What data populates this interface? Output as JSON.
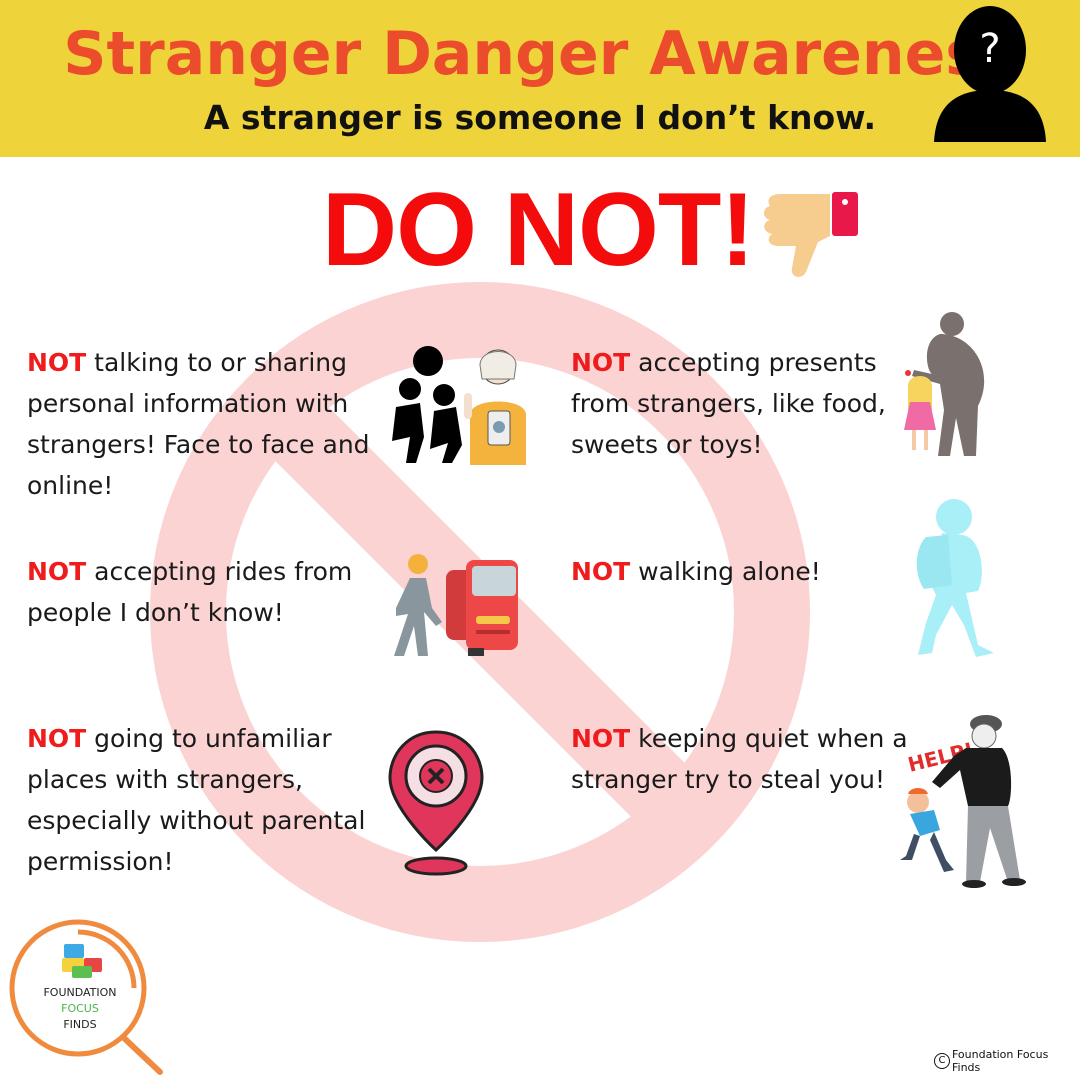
{
  "header": {
    "title": "Stranger Danger Awareness",
    "subtitle": "A stranger is someone I don’t know.",
    "question_mark": "?",
    "icon": "person-question-icon"
  },
  "headline": {
    "text": "DO NOT!",
    "icon": "thumbs-down-icon"
  },
  "items": [
    {
      "keyword": "NOT",
      "text": " talking to or sharing personal information with strangers! Face to face and online!",
      "icon": "talking-people-icon"
    },
    {
      "keyword": "NOT",
      "text": " accepting presents from strangers, like food, sweets or toys!",
      "icon": "stranger-offering-child-icon"
    },
    {
      "keyword": "NOT",
      "text": " accepting rides from people I don’t know!",
      "icon": "person-and-car-icon"
    },
    {
      "keyword": "NOT",
      "text": " walking alone!",
      "icon": "child-walking-alone-icon"
    },
    {
      "keyword": "NOT",
      "text": " going to unfamiliar places with strangers, especially without parental permission!",
      "icon": "location-pin-x-icon"
    },
    {
      "keyword": "NOT",
      "text": " keeping quiet when a stranger try to steal you!",
      "icon": "stranger-grabbing-child-icon"
    }
  ],
  "help_label": "HELP!",
  "logo": {
    "line1": "FOUNDATION",
    "line2": "FOCUS",
    "line3": "FINDS",
    "icon": "magnifier-blocks-icon"
  },
  "copyright": {
    "symbol": "C",
    "text": "Foundation Focus Finds"
  },
  "colors": {
    "header_bg": "#eed43a",
    "title": "#ea4c2c",
    "do_not": "#f40b0b",
    "keyword": "#ee1c1c",
    "prohibition_sign": "#f9c9c9"
  }
}
